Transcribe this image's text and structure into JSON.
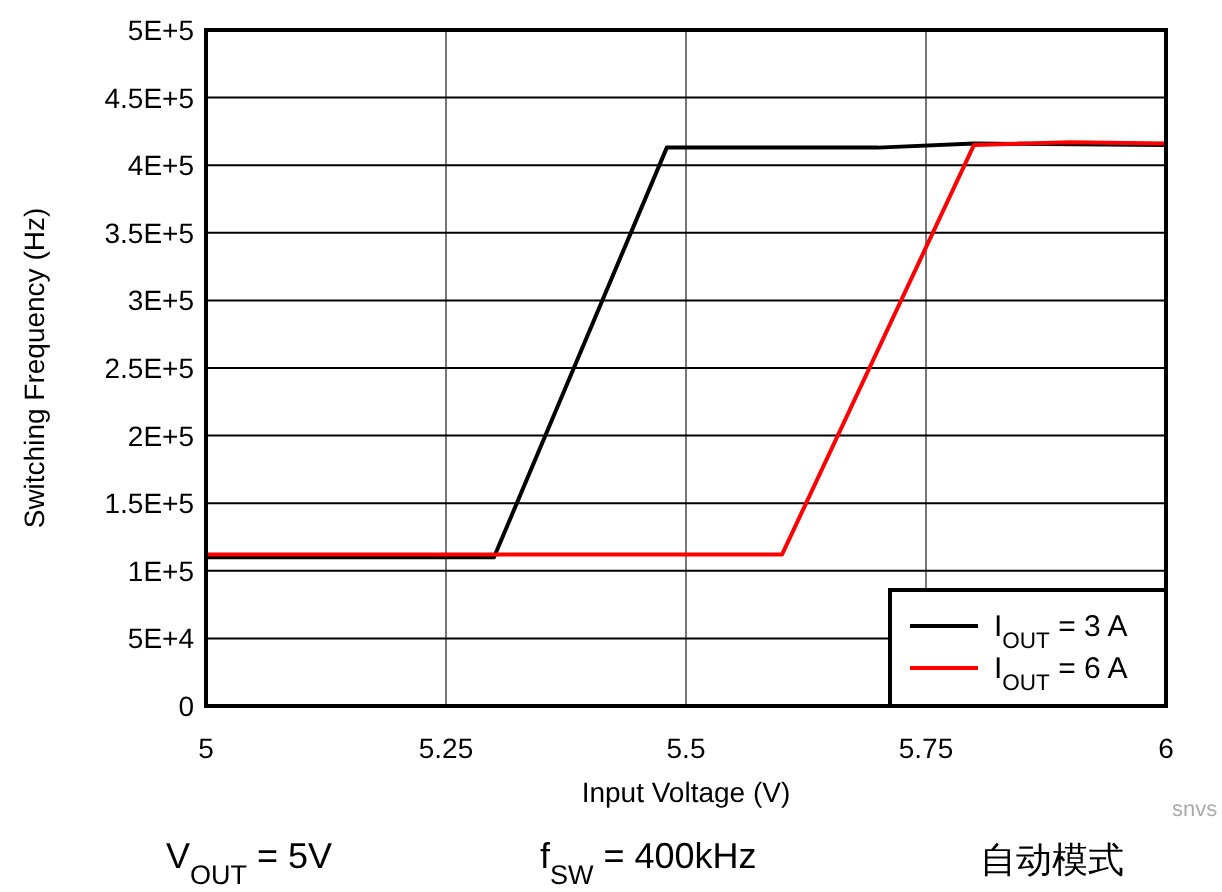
{
  "chart_data": {
    "type": "line",
    "xlabel": "Input Voltage (V)",
    "ylabel": "Switching Frequency (Hz)",
    "xlim": [
      5,
      6
    ],
    "xticks": [
      5,
      5.25,
      5.5,
      5.75,
      6
    ],
    "ylim": [
      0,
      500000
    ],
    "yticks": [
      {
        "value": 0,
        "label": "0"
      },
      {
        "value": 50000,
        "label": "5E+4"
      },
      {
        "value": 100000,
        "label": "1E+5"
      },
      {
        "value": 150000,
        "label": "1.5E+5"
      },
      {
        "value": 200000,
        "label": "2E+5"
      },
      {
        "value": 250000,
        "label": "2.5E+5"
      },
      {
        "value": 300000,
        "label": "3E+5"
      },
      {
        "value": 350000,
        "label": "3.5E+5"
      },
      {
        "value": 400000,
        "label": "4E+5"
      },
      {
        "value": 450000,
        "label": "4.5E+5"
      },
      {
        "value": 500000,
        "label": "5E+5"
      }
    ],
    "grid": true,
    "legend": "bottom right",
    "marker": "none",
    "line_style": "solid",
    "series": [
      {
        "name": "I$_{OUT}$ = 3 A",
        "color": "#000000",
        "x": [
          5,
          5.3,
          5.48,
          5.7,
          5.8,
          6
        ],
        "values": [
          110000,
          110000,
          413000,
          413000,
          416000,
          415000
        ]
      },
      {
        "name": "I$_{OUT}$ = 6 A",
        "color": "#ff0000",
        "x": [
          5,
          5.6,
          5.8,
          5.9,
          6
        ],
        "values": [
          112000,
          112000,
          415000,
          417000,
          416000
        ]
      }
    ],
    "annotations": [
      "V$_{OUT}$ = 5V",
      "f$_{SW}$ = 400kHz",
      "自动模式",
      "snvs"
    ]
  }
}
